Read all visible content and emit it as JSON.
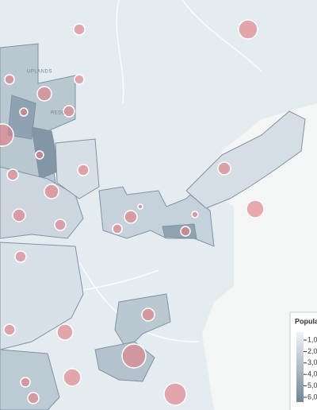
{
  "legend": {
    "title": "Popula",
    "labels": [
      "1,0",
      "2,0",
      "3,0",
      "4,0",
      "5,0",
      "6,0"
    ]
  },
  "map_labels": [
    "UPLANDS",
    "REDL"
  ]
}
